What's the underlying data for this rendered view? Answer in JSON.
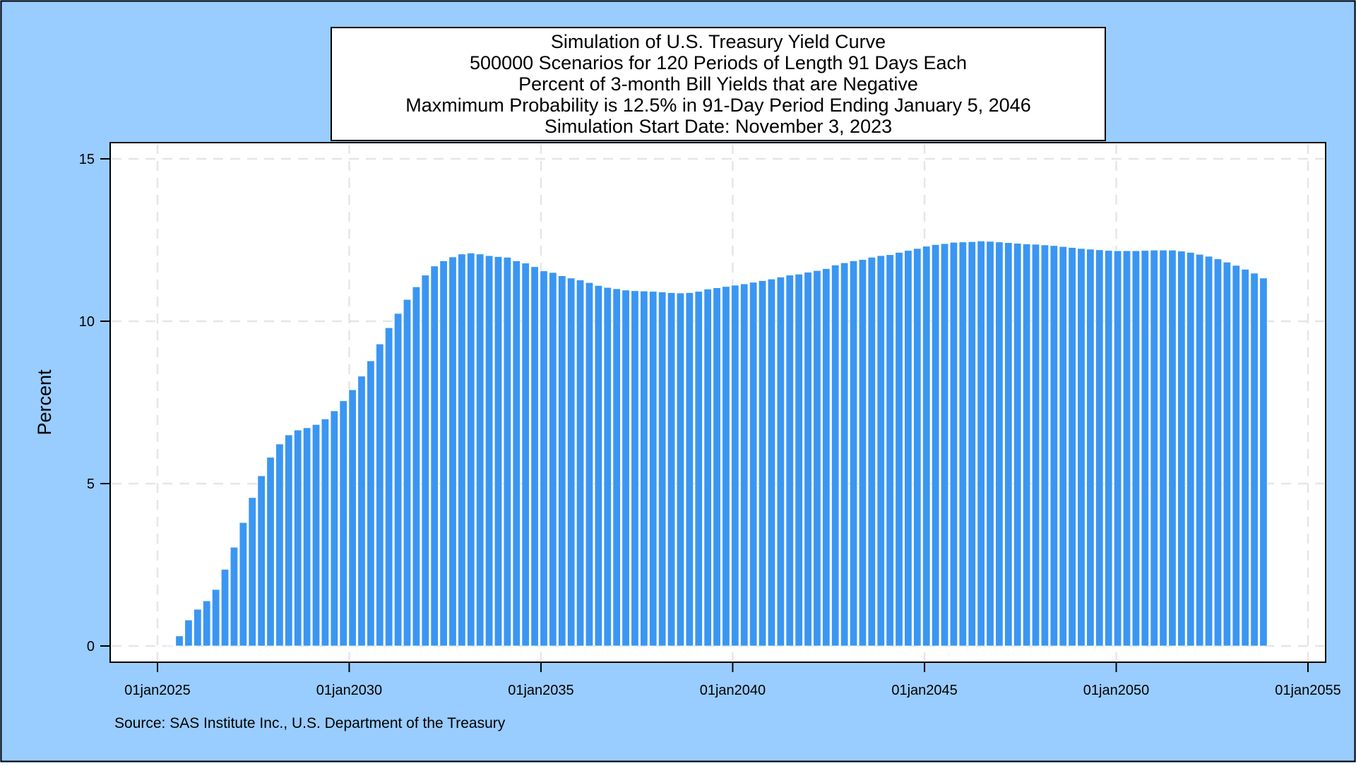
{
  "colors": {
    "background": "#99CCFF",
    "panel": "#FFFFFF",
    "bar": "#3A96F2",
    "bar_edge": "#FFFFFF",
    "grid": "#E6E6E6",
    "frame": "#000000"
  },
  "source_note": "Source: SAS Institute Inc., U.S. Department of the Treasury",
  "chart_data": {
    "type": "bar",
    "title_lines": [
      "Simulation of U.S. Treasury Yield Curve",
      "500000 Scenarios for 120 Periods of Length 91 Days Each",
      "Percent of 3-month Bill Yields that are Negative",
      "Maxmimum Probability is 12.5% in 91-Day Period Ending January 5, 2046",
      "Simulation Start Date: November 3, 2023"
    ],
    "xlabel": "",
    "ylabel": "Percent",
    "xlim": [
      "2025-01-01",
      "2055-01-01"
    ],
    "ylim": [
      0,
      15
    ],
    "x_ticks": [
      "01jan2025",
      "01jan2030",
      "01jan2035",
      "01jan2040",
      "01jan2045",
      "01jan2050",
      "01jan2055"
    ],
    "y_ticks": [
      0,
      5,
      10,
      15
    ],
    "grid": true,
    "legend": "none",
    "x_start": "2025-05-03",
    "x_end": "2053-11-03",
    "values": [
      0.01,
      0.31,
      0.8,
      1.13,
      1.39,
      1.74,
      2.36,
      3.04,
      3.8,
      4.57,
      5.24,
      5.81,
      6.22,
      6.5,
      6.65,
      6.72,
      6.82,
      6.99,
      7.24,
      7.55,
      7.89,
      8.31,
      8.78,
      9.3,
      9.8,
      10.24,
      10.67,
      11.06,
      11.42,
      11.7,
      11.86,
      11.98,
      12.07,
      12.1,
      12.07,
      12.02,
      11.99,
      11.97,
      11.86,
      11.79,
      11.68,
      11.55,
      11.5,
      11.4,
      11.33,
      11.27,
      11.19,
      11.1,
      11.04,
      11.0,
      10.96,
      10.94,
      10.93,
      10.92,
      10.9,
      10.88,
      10.87,
      10.88,
      10.92,
      10.99,
      11.03,
      11.07,
      11.11,
      11.15,
      11.2,
      11.25,
      11.3,
      11.36,
      11.42,
      11.45,
      11.51,
      11.56,
      11.62,
      11.73,
      11.8,
      11.86,
      11.9,
      11.97,
      12.02,
      12.05,
      12.12,
      12.18,
      12.24,
      12.31,
      12.36,
      12.39,
      12.43,
      12.44,
      12.45,
      12.47,
      12.46,
      12.44,
      12.42,
      12.4,
      12.38,
      12.37,
      12.35,
      12.33,
      12.3,
      12.27,
      12.24,
      12.22,
      12.2,
      12.18,
      12.17,
      12.17,
      12.17,
      12.18,
      12.19,
      12.19,
      12.19,
      12.16,
      12.12,
      12.06,
      12.0,
      11.92,
      11.82,
      11.72,
      11.6,
      11.48,
      11.33
    ]
  }
}
